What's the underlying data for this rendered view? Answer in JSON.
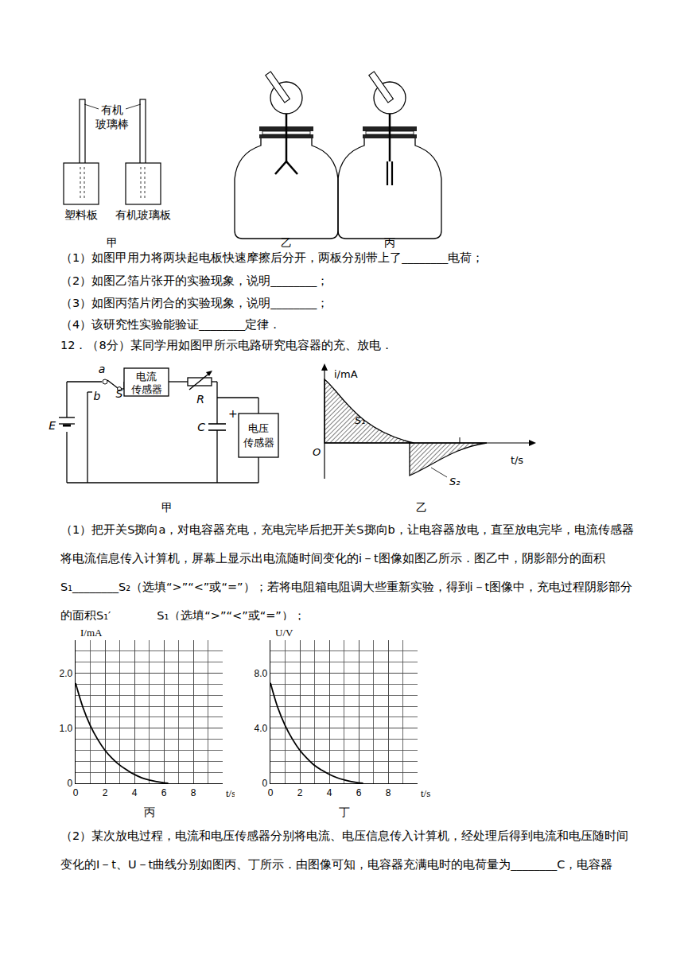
{
  "document": {
    "figure_1": {
      "rod_label": [
        "有机",
        "玻璃棒"
      ],
      "plate_left": "塑料板",
      "plate_right": "有机玻璃板",
      "captions": [
        "甲",
        "乙",
        "丙"
      ]
    },
    "q11_items": [
      "（1）如图甲用力将两块起电板快速摩擦后分开，两板分别带上了________电荷；",
      "（2）如图乙箔片张开的实验现象，说明________；",
      "（3）如图丙箔片闭合的实验现象，说明________；",
      "（4）该研究性实验能验证________定律．"
    ],
    "q12_heading": "12．（8分）某同学用如图甲所示电路研究电容器的充、放电．",
    "circuit": {
      "a": "a",
      "b": "b",
      "S": "S",
      "E": "E",
      "current_sensor": [
        "电流",
        "传感器"
      ],
      "R": "R",
      "C": "C",
      "plus": "+",
      "voltage_sensor": [
        "电压",
        "传感器"
      ],
      "caption": "甲"
    },
    "it_graph": {
      "y_label": "i/mA",
      "origin": "O",
      "x_label": "t/s",
      "s1": "S₁",
      "s2": "S₂",
      "caption": "乙"
    },
    "q12_part1": "（1）把开关S掷向a，对电容器充电，充电完毕后把开关S掷向b，让电容器放电，直至放电完毕，电流传感器将电流信息传入计算机，屏幕上显示出电流随时间变化的i－t图像如图乙所示．图乙中，阴影部分的面积S₁________S₂（选填“>”“<”或“=”）；若将电阻箱电阻调大些重新实验，得到i－t图像中，充电过程阴影部分的面积S₁′________S₁（选填“>”“<”或“=”）；",
    "q12_part2": "（2）某次放电过程，电流和电压传感器分别将电流、电压信息传入计算机，经处理后得到电流和电压随时间变化的I－t、U－t曲线分别如图丙、丁所示．由图像可知，电容器充满电时的电荷量为________C，电容器"
  },
  "chart_data": [
    {
      "type": "line",
      "title": "丙",
      "x_label": "t/s",
      "y_label": "I/mA",
      "x": [
        0,
        0.5,
        1,
        1.5,
        2,
        2.5,
        3,
        3.5,
        4,
        4.5,
        5,
        5.5,
        6,
        6.3
      ],
      "values": [
        1.82,
        1.38,
        1.05,
        0.8,
        0.6,
        0.45,
        0.33,
        0.24,
        0.16,
        0.1,
        0.06,
        0.03,
        0.01,
        0
      ],
      "xlim": [
        0,
        10
      ],
      "ylim": [
        0,
        2.6
      ],
      "xticks": [
        0,
        2,
        4,
        6,
        8
      ],
      "yticks": [
        0,
        {
          "value": 1,
          "label": "1.0"
        },
        {
          "value": 2,
          "label": "2.0"
        }
      ],
      "grid": true,
      "color": "#000000"
    },
    {
      "type": "line",
      "title": "丁",
      "x_label": "t/s",
      "y_label": "U/V",
      "x": [
        0,
        0.5,
        1,
        1.5,
        2,
        2.5,
        3,
        3.5,
        4,
        4.5,
        5,
        5.5,
        6,
        6.3
      ],
      "values": [
        7.3,
        5.5,
        4.2,
        3.2,
        2.4,
        1.8,
        1.3,
        0.95,
        0.65,
        0.42,
        0.25,
        0.12,
        0.04,
        0
      ],
      "xlim": [
        0,
        10
      ],
      "ylim": [
        0,
        10.4
      ],
      "xticks": [
        0,
        2,
        4,
        6,
        8
      ],
      "yticks": [
        0,
        {
          "value": 4,
          "label": "4.0"
        },
        {
          "value": 8,
          "label": "8.0"
        }
      ],
      "grid": true,
      "color": "#000000"
    }
  ]
}
